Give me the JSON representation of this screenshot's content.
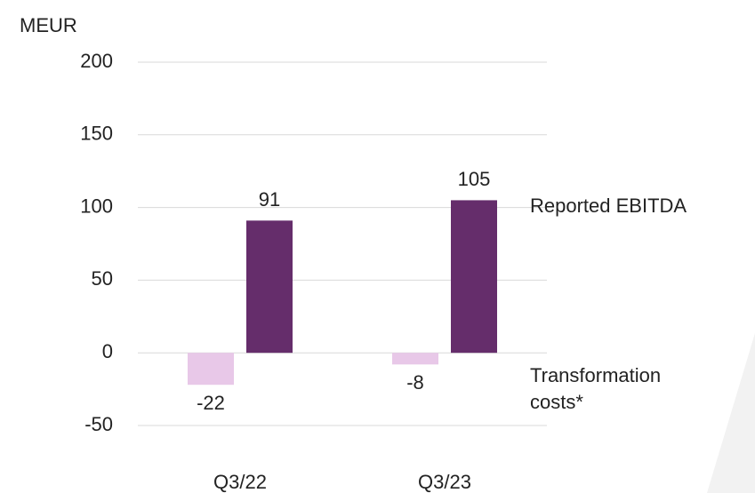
{
  "chart_data": {
    "type": "bar",
    "y_label": "MEUR",
    "categories": [
      "Q3/22",
      "Q3/23"
    ],
    "series": [
      {
        "name": "Transformation costs*",
        "color": "#e8c8e8",
        "values": [
          -22,
          -8
        ]
      },
      {
        "name": "Reported EBITDA",
        "color": "#652d6b",
        "values": [
          91,
          105
        ]
      }
    ],
    "ylim": [
      -50,
      200
    ],
    "yticks": [
      -50,
      0,
      50,
      100,
      150,
      200
    ],
    "grid": true
  }
}
